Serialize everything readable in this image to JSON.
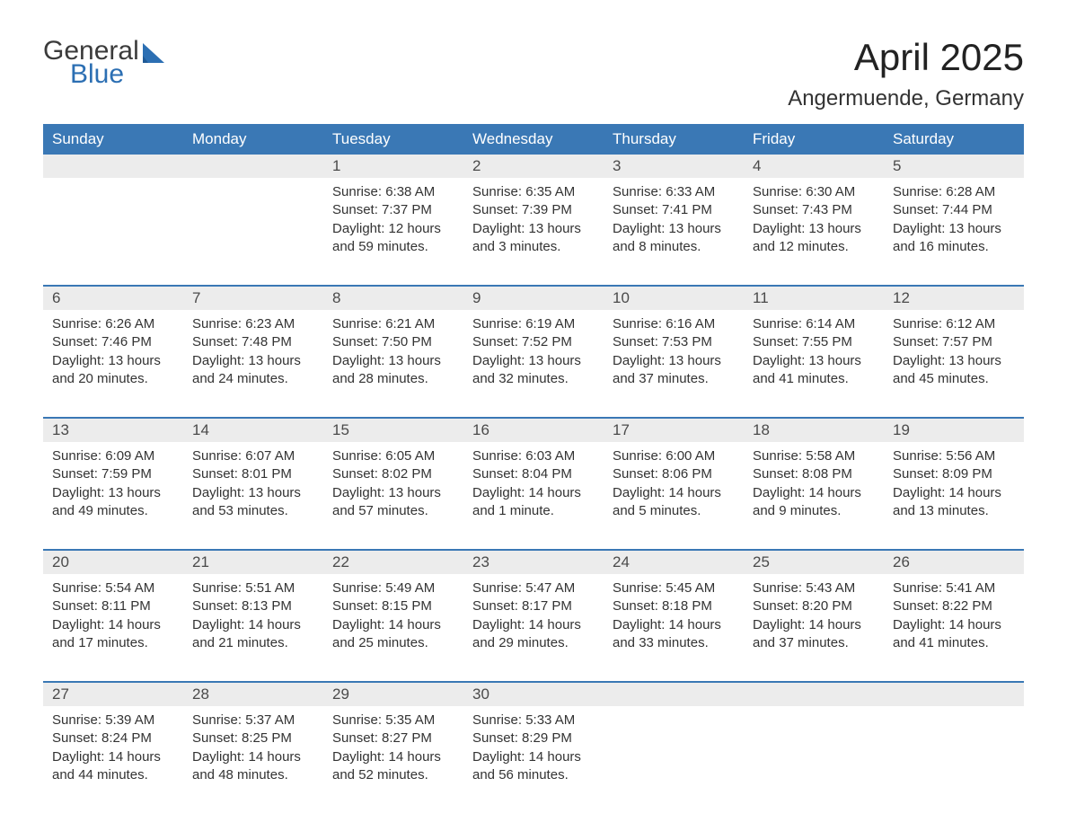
{
  "logo": {
    "line1": "General",
    "line2": "Blue",
    "accent_color": "#2c6fb3",
    "text_color": "#3b3b3b"
  },
  "title": "April 2025",
  "location": "Angermuende, Germany",
  "colors": {
    "header_bg": "#3a78b5",
    "header_fg": "#ffffff",
    "daynum_bg": "#ececec",
    "text": "#333333",
    "rule": "#3a78b5",
    "page_bg": "#ffffff"
  },
  "typography": {
    "month_title_size_pt": 32,
    "location_size_pt": 18,
    "dow_size_pt": 13,
    "daynum_size_pt": 13,
    "body_size_pt": 11
  },
  "days_of_week": [
    "Sunday",
    "Monday",
    "Tuesday",
    "Wednesday",
    "Thursday",
    "Friday",
    "Saturday"
  ],
  "weeks": [
    [
      null,
      null,
      {
        "n": "1",
        "sunrise": "6:38 AM",
        "sunset": "7:37 PM",
        "dl1": "12 hours",
        "dl2": "and 59 minutes."
      },
      {
        "n": "2",
        "sunrise": "6:35 AM",
        "sunset": "7:39 PM",
        "dl1": "13 hours",
        "dl2": "and 3 minutes."
      },
      {
        "n": "3",
        "sunrise": "6:33 AM",
        "sunset": "7:41 PM",
        "dl1": "13 hours",
        "dl2": "and 8 minutes."
      },
      {
        "n": "4",
        "sunrise": "6:30 AM",
        "sunset": "7:43 PM",
        "dl1": "13 hours",
        "dl2": "and 12 minutes."
      },
      {
        "n": "5",
        "sunrise": "6:28 AM",
        "sunset": "7:44 PM",
        "dl1": "13 hours",
        "dl2": "and 16 minutes."
      }
    ],
    [
      {
        "n": "6",
        "sunrise": "6:26 AM",
        "sunset": "7:46 PM",
        "dl1": "13 hours",
        "dl2": "and 20 minutes."
      },
      {
        "n": "7",
        "sunrise": "6:23 AM",
        "sunset": "7:48 PM",
        "dl1": "13 hours",
        "dl2": "and 24 minutes."
      },
      {
        "n": "8",
        "sunrise": "6:21 AM",
        "sunset": "7:50 PM",
        "dl1": "13 hours",
        "dl2": "and 28 minutes."
      },
      {
        "n": "9",
        "sunrise": "6:19 AM",
        "sunset": "7:52 PM",
        "dl1": "13 hours",
        "dl2": "and 32 minutes."
      },
      {
        "n": "10",
        "sunrise": "6:16 AM",
        "sunset": "7:53 PM",
        "dl1": "13 hours",
        "dl2": "and 37 minutes."
      },
      {
        "n": "11",
        "sunrise": "6:14 AM",
        "sunset": "7:55 PM",
        "dl1": "13 hours",
        "dl2": "and 41 minutes."
      },
      {
        "n": "12",
        "sunrise": "6:12 AM",
        "sunset": "7:57 PM",
        "dl1": "13 hours",
        "dl2": "and 45 minutes."
      }
    ],
    [
      {
        "n": "13",
        "sunrise": "6:09 AM",
        "sunset": "7:59 PM",
        "dl1": "13 hours",
        "dl2": "and 49 minutes."
      },
      {
        "n": "14",
        "sunrise": "6:07 AM",
        "sunset": "8:01 PM",
        "dl1": "13 hours",
        "dl2": "and 53 minutes."
      },
      {
        "n": "15",
        "sunrise": "6:05 AM",
        "sunset": "8:02 PM",
        "dl1": "13 hours",
        "dl2": "and 57 minutes."
      },
      {
        "n": "16",
        "sunrise": "6:03 AM",
        "sunset": "8:04 PM",
        "dl1": "14 hours",
        "dl2": "and 1 minute."
      },
      {
        "n": "17",
        "sunrise": "6:00 AM",
        "sunset": "8:06 PM",
        "dl1": "14 hours",
        "dl2": "and 5 minutes."
      },
      {
        "n": "18",
        "sunrise": "5:58 AM",
        "sunset": "8:08 PM",
        "dl1": "14 hours",
        "dl2": "and 9 minutes."
      },
      {
        "n": "19",
        "sunrise": "5:56 AM",
        "sunset": "8:09 PM",
        "dl1": "14 hours",
        "dl2": "and 13 minutes."
      }
    ],
    [
      {
        "n": "20",
        "sunrise": "5:54 AM",
        "sunset": "8:11 PM",
        "dl1": "14 hours",
        "dl2": "and 17 minutes."
      },
      {
        "n": "21",
        "sunrise": "5:51 AM",
        "sunset": "8:13 PM",
        "dl1": "14 hours",
        "dl2": "and 21 minutes."
      },
      {
        "n": "22",
        "sunrise": "5:49 AM",
        "sunset": "8:15 PM",
        "dl1": "14 hours",
        "dl2": "and 25 minutes."
      },
      {
        "n": "23",
        "sunrise": "5:47 AM",
        "sunset": "8:17 PM",
        "dl1": "14 hours",
        "dl2": "and 29 minutes."
      },
      {
        "n": "24",
        "sunrise": "5:45 AM",
        "sunset": "8:18 PM",
        "dl1": "14 hours",
        "dl2": "and 33 minutes."
      },
      {
        "n": "25",
        "sunrise": "5:43 AM",
        "sunset": "8:20 PM",
        "dl1": "14 hours",
        "dl2": "and 37 minutes."
      },
      {
        "n": "26",
        "sunrise": "5:41 AM",
        "sunset": "8:22 PM",
        "dl1": "14 hours",
        "dl2": "and 41 minutes."
      }
    ],
    [
      {
        "n": "27",
        "sunrise": "5:39 AM",
        "sunset": "8:24 PM",
        "dl1": "14 hours",
        "dl2": "and 44 minutes."
      },
      {
        "n": "28",
        "sunrise": "5:37 AM",
        "sunset": "8:25 PM",
        "dl1": "14 hours",
        "dl2": "and 48 minutes."
      },
      {
        "n": "29",
        "sunrise": "5:35 AM",
        "sunset": "8:27 PM",
        "dl1": "14 hours",
        "dl2": "and 52 minutes."
      },
      {
        "n": "30",
        "sunrise": "5:33 AM",
        "sunset": "8:29 PM",
        "dl1": "14 hours",
        "dl2": "and 56 minutes."
      },
      null,
      null,
      null
    ]
  ],
  "labels": {
    "sunrise": "Sunrise: ",
    "sunset": "Sunset: ",
    "daylight": "Daylight: "
  }
}
